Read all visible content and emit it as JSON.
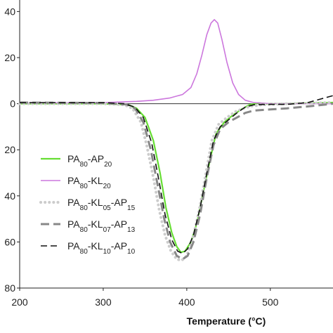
{
  "chart_data": {
    "type": "line",
    "title": "",
    "xlabel": "Temperature (°C)",
    "ylabel": "",
    "xlim": [
      200,
      575
    ],
    "ylim": [
      -80,
      45
    ],
    "x_ticks": [
      200,
      300,
      400,
      500
    ],
    "y_ticks": [
      40,
      20,
      0,
      -20,
      -40,
      -60,
      -80
    ],
    "y_tick_labels": [
      "40",
      "20",
      "0",
      "20",
      "40",
      "60",
      "80"
    ],
    "grid": false,
    "zero_line": true,
    "legend_position": "center-left",
    "series": [
      {
        "name": "PA80-AP20",
        "legend_parts": [
          {
            "t": "PA"
          },
          {
            "t": "80",
            "sub": true
          },
          {
            "t": "-AP"
          },
          {
            "t": "20",
            "sub": true
          }
        ],
        "color": "#66dd33",
        "dash": "solid",
        "width": 2.2,
        "points": [
          [
            200,
            0
          ],
          [
            300,
            0
          ],
          [
            330,
            -0.5
          ],
          [
            340,
            -2
          ],
          [
            350,
            -6
          ],
          [
            360,
            -16
          ],
          [
            368,
            -30
          ],
          [
            375,
            -45
          ],
          [
            382,
            -56
          ],
          [
            388,
            -62
          ],
          [
            393,
            -64.5
          ],
          [
            398,
            -64
          ],
          [
            405,
            -60
          ],
          [
            412,
            -52
          ],
          [
            420,
            -38
          ],
          [
            428,
            -24
          ],
          [
            435,
            -13
          ],
          [
            445,
            -8
          ],
          [
            455,
            -5
          ],
          [
            465,
            -2.5
          ],
          [
            475,
            -0.5
          ],
          [
            485,
            0.3
          ],
          [
            495,
            0
          ],
          [
            520,
            0
          ],
          [
            575,
            0.5
          ]
        ]
      },
      {
        "name": "PA80-KL20",
        "legend_parts": [
          {
            "t": "PA"
          },
          {
            "t": "80",
            "sub": true
          },
          {
            "t": "-KL"
          },
          {
            "t": "20",
            "sub": true
          }
        ],
        "color": "#cc77dd",
        "dash": "solid",
        "width": 1.6,
        "points": [
          [
            200,
            0.3
          ],
          [
            300,
            0.5
          ],
          [
            340,
            1
          ],
          [
            360,
            1.5
          ],
          [
            380,
            2.5
          ],
          [
            395,
            4
          ],
          [
            405,
            7
          ],
          [
            412,
            13
          ],
          [
            418,
            21
          ],
          [
            424,
            30
          ],
          [
            429,
            35
          ],
          [
            433,
            36.5
          ],
          [
            437,
            35
          ],
          [
            442,
            28
          ],
          [
            448,
            18
          ],
          [
            455,
            9
          ],
          [
            462,
            4
          ],
          [
            470,
            1.5
          ],
          [
            480,
            0.5
          ],
          [
            500,
            0
          ],
          [
            575,
            0
          ]
        ]
      },
      {
        "name": "PA80-KL05-AP15",
        "legend_parts": [
          {
            "t": "PA"
          },
          {
            "t": "80",
            "sub": true
          },
          {
            "t": "-KL"
          },
          {
            "t": "05",
            "sub": true
          },
          {
            "t": "-AP"
          },
          {
            "t": "15",
            "sub": true
          }
        ],
        "color": "#cccccc",
        "dash": "dot",
        "width": 4,
        "points": [
          [
            200,
            0
          ],
          [
            300,
            0
          ],
          [
            325,
            -0.5
          ],
          [
            335,
            -2
          ],
          [
            345,
            -8
          ],
          [
            352,
            -18
          ],
          [
            360,
            -32
          ],
          [
            367,
            -46
          ],
          [
            374,
            -57
          ],
          [
            381,
            -64
          ],
          [
            388,
            -67.5
          ],
          [
            394,
            -68
          ],
          [
            400,
            -66
          ],
          [
            407,
            -59
          ],
          [
            415,
            -46
          ],
          [
            423,
            -30
          ],
          [
            430,
            -16
          ],
          [
            438,
            -9
          ],
          [
            448,
            -6
          ],
          [
            458,
            -3.5
          ],
          [
            468,
            -2
          ],
          [
            478,
            -1
          ],
          [
            490,
            -0.5
          ],
          [
            520,
            0
          ],
          [
            575,
            0.5
          ]
        ]
      },
      {
        "name": "PA80-KL07-AP13",
        "legend_parts": [
          {
            "t": "PA"
          },
          {
            "t": "80",
            "sub": true
          },
          {
            "t": "-KL"
          },
          {
            "t": "07",
            "sub": true
          },
          {
            "t": "-AP"
          },
          {
            "t": "13",
            "sub": true
          }
        ],
        "color": "#888888",
        "dash": "longdash",
        "width": 3,
        "points": [
          [
            200,
            0.5
          ],
          [
            300,
            0.3
          ],
          [
            328,
            -0.3
          ],
          [
            338,
            -2
          ],
          [
            348,
            -8
          ],
          [
            357,
            -20
          ],
          [
            365,
            -35
          ],
          [
            373,
            -50
          ],
          [
            380,
            -60
          ],
          [
            388,
            -66
          ],
          [
            395,
            -67.5
          ],
          [
            401,
            -66
          ],
          [
            408,
            -60
          ],
          [
            416,
            -48
          ],
          [
            424,
            -32
          ],
          [
            432,
            -18
          ],
          [
            440,
            -11
          ],
          [
            450,
            -8
          ],
          [
            460,
            -6
          ],
          [
            470,
            -4
          ],
          [
            480,
            -3
          ],
          [
            500,
            -2.5
          ],
          [
            520,
            -2
          ],
          [
            550,
            -1
          ],
          [
            575,
            0
          ]
        ]
      },
      {
        "name": "PA80-KL10-AP10",
        "legend_parts": [
          {
            "t": "PA"
          },
          {
            "t": "80",
            "sub": true
          },
          {
            "t": "-KL"
          },
          {
            "t": "10",
            "sub": true
          },
          {
            "t": "-AP"
          },
          {
            "t": "10",
            "sub": true
          }
        ],
        "color": "#111111",
        "dash": "dash",
        "width": 1.6,
        "points": [
          [
            200,
            0.5
          ],
          [
            300,
            0.5
          ],
          [
            325,
            0
          ],
          [
            338,
            -1.5
          ],
          [
            348,
            -6
          ],
          [
            358,
            -17
          ],
          [
            366,
            -32
          ],
          [
            374,
            -48
          ],
          [
            382,
            -59
          ],
          [
            389,
            -64
          ],
          [
            395,
            -65
          ],
          [
            401,
            -63
          ],
          [
            408,
            -57
          ],
          [
            416,
            -45
          ],
          [
            424,
            -30
          ],
          [
            432,
            -16
          ],
          [
            440,
            -10
          ],
          [
            450,
            -7
          ],
          [
            460,
            -4
          ],
          [
            470,
            -1.5
          ],
          [
            480,
            -0.5
          ],
          [
            495,
            -0.3
          ],
          [
            520,
            -0.3
          ],
          [
            545,
            0.5
          ],
          [
            560,
            2
          ],
          [
            575,
            3.5
          ]
        ]
      }
    ]
  }
}
